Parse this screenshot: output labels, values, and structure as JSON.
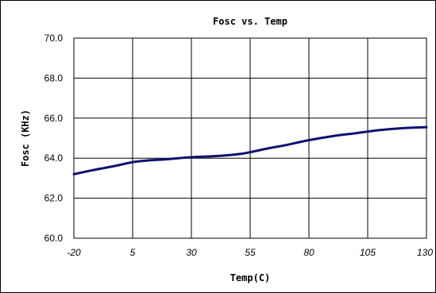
{
  "chart_data": {
    "type": "line",
    "title": "Fosc vs. Temp",
    "xlabel": "Temp(C)",
    "ylabel": "Fosc (KHz)",
    "xlim": [
      -20,
      130
    ],
    "ylim": [
      60,
      70
    ],
    "x_ticks": [
      "-20",
      "5",
      "30",
      "55",
      "80",
      "105",
      "130"
    ],
    "y_ticks": [
      "60.0",
      "62.0",
      "64.0",
      "66.0",
      "68.0",
      "70.0"
    ],
    "grid": true,
    "legend": "none",
    "series": [
      {
        "color": "#101070",
        "x": [
          -20,
          -12,
          -3,
          5,
          13,
          20,
          30,
          40,
          50,
          55,
          63,
          70,
          80,
          90,
          100,
          110,
          120,
          130
        ],
        "y": [
          63.2,
          63.4,
          63.6,
          63.8,
          63.9,
          63.95,
          64.05,
          64.1,
          64.2,
          64.3,
          64.5,
          64.65,
          64.9,
          65.1,
          65.25,
          65.4,
          65.5,
          65.55
        ]
      }
    ]
  }
}
